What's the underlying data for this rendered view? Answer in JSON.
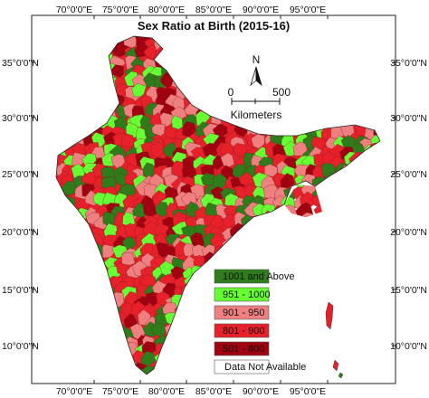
{
  "map": {
    "title": "Sex Ratio at Birth (2015-16)",
    "longitude_labels": [
      "70°0'0\"E",
      "75°0'0\"E",
      "80°0'0\"E",
      "85°0'0\"E",
      "90°0'0\"E",
      "95°0'0\"E"
    ],
    "latitude_labels": [
      "35°0'0\"N",
      "30°0'0\"N",
      "25°0'0\"N",
      "20°0'0\"N",
      "15°0'0\"N",
      "10°0'0\"N"
    ],
    "north_arrow_label": "N",
    "scale_bar": {
      "start": "0",
      "end": "500",
      "unit": "Kilometers"
    },
    "legend": [
      {
        "label": "1001 and Above",
        "color": "#2e7d1a"
      },
      {
        "label": "951 - 1000",
        "color": "#66ff33"
      },
      {
        "label": "901 - 950",
        "color": "#f08080"
      },
      {
        "label": "801 - 900",
        "color": "#e8202a"
      },
      {
        "label": "501 - 800",
        "color": "#a00010"
      },
      {
        "label": "Data Not Available",
        "color": "#ffffff"
      }
    ]
  }
}
